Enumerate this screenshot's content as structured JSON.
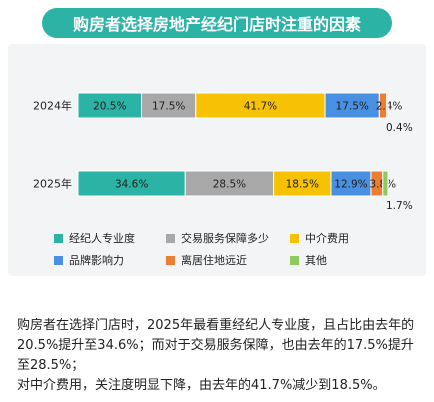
{
  "header": {
    "title": "购房者选择房地产经纪门店时注重的因素"
  },
  "colors": {
    "经纪人专业度": "#2bb3a6",
    "交易服务保障多少": "#a8a8a8",
    "中介费用": "#f7c203",
    "品牌影响力": "#4a90e2",
    "离居住地远近": "#ed7d31",
    "其他": "#8fca5c"
  },
  "chart_data": {
    "type": "bar",
    "orientation": "horizontal",
    "stacked": true,
    "categories": [
      "2024年",
      "2025年"
    ],
    "series": [
      {
        "name": "经纪人专业度",
        "values": [
          20.5,
          34.6
        ],
        "labels": [
          "20.5%",
          "34.6%"
        ]
      },
      {
        "name": "交易服务保障多少",
        "values": [
          17.5,
          28.5
        ],
        "labels": [
          "17.5%",
          "28.5%"
        ]
      },
      {
        "name": "中介费用",
        "values": [
          41.7,
          18.5
        ],
        "labels": [
          "41.7%",
          "18.5%"
        ]
      },
      {
        "name": "品牌影响力",
        "values": [
          17.5,
          12.9
        ],
        "labels": [
          "17.5%",
          "12.9%"
        ]
      },
      {
        "name": "离居住地远近",
        "values": [
          2.4,
          3.8
        ],
        "labels": [
          "2.4%",
          "3.8%"
        ]
      },
      {
        "name": "其他",
        "values": [
          0.4,
          1.7
        ],
        "labels": [
          "0.4%",
          "1.7%"
        ]
      }
    ],
    "xlim": [
      0,
      100
    ],
    "legend_position": "bottom",
    "grid": false
  },
  "summary": {
    "line1": "购房者在选择门店时，2025年最看重经纪人专业度，且占比由去年的20.5%提升至34.6%；而对于交易服务保障，也由去年的17.5%提升至28.5%；",
    "line2": "对中介费用，关注度明显下降，由去年的41.7%减少到18.5%。"
  }
}
